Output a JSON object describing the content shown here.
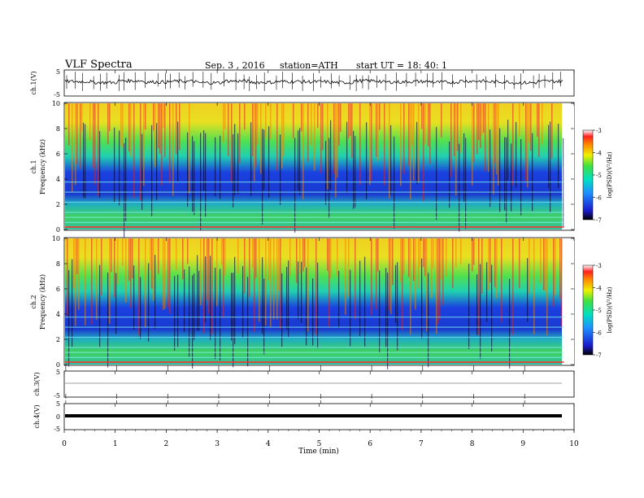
{
  "header": {
    "title": "VLF  Spectra",
    "date": "Sep. 3  , 2016",
    "station": "station=ATH",
    "start": "start  UT  =   18: 40: 1"
  },
  "chart_data": [
    {
      "type": "line",
      "title": "",
      "ylabel": "ch.1(V)",
      "ylim": [
        -5,
        5
      ],
      "yticks": [
        "5",
        "-5"
      ],
      "description_values": "waveform fluctuating around ~0.5 V with spikes",
      "series": [
        {
          "values": [
            0.6,
            0.2,
            0.9,
            0.4,
            0.7,
            0.1,
            0.8,
            0.3,
            0.6,
            0.5,
            0.2,
            0.9,
            0.4,
            0.6,
            0.3,
            0.8,
            0.5,
            0.1,
            0.7,
            0.4
          ]
        }
      ]
    },
    {
      "type": "heatmap",
      "ylabel_top": "ch.1",
      "ylabel": "Frequency  (kHz)",
      "ylim": [
        0,
        10
      ],
      "yticks": [
        "0",
        "2",
        "4",
        "6",
        "8",
        "10"
      ],
      "colorbar": {
        "label": "log(PSD)(V²/Hz)",
        "ticks": [
          "-3",
          "-4",
          "-5",
          "-6",
          "-7"
        ],
        "range": [
          -7,
          -3
        ]
      }
    },
    {
      "type": "heatmap",
      "ylabel_top": "ch.2",
      "ylabel": "Frequency  (kHz)",
      "ylim": [
        0,
        10
      ],
      "yticks": [
        "0",
        "2",
        "4",
        "6",
        "8",
        "10"
      ],
      "colorbar": {
        "label": "log(PSD)(V²/Hz)",
        "ticks": [
          "-3",
          "-4",
          "-5",
          "-6",
          "-7"
        ],
        "range": [
          -7,
          -3
        ]
      }
    },
    {
      "type": "line",
      "ylabel": "ch.3(V)",
      "ylim": [
        -5,
        5
      ],
      "yticks": [
        "5",
        "-5"
      ],
      "series": [
        {
          "values": [
            0,
            0
          ]
        }
      ]
    },
    {
      "type": "line",
      "ylabel": "ch.4(V)",
      "ylim": [
        -5,
        5
      ],
      "yticks": [
        "5",
        "0",
        "-5"
      ],
      "series": [
        {
          "values": [
            -1.2,
            -1.2
          ]
        }
      ]
    }
  ],
  "xaxis": {
    "label": "Time  (min)",
    "ticks": [
      "0",
      "1",
      "2",
      "3",
      "4",
      "5",
      "6",
      "7",
      "8",
      "9",
      "10"
    ],
    "range": [
      0,
      10
    ],
    "data_end": 9.8
  }
}
